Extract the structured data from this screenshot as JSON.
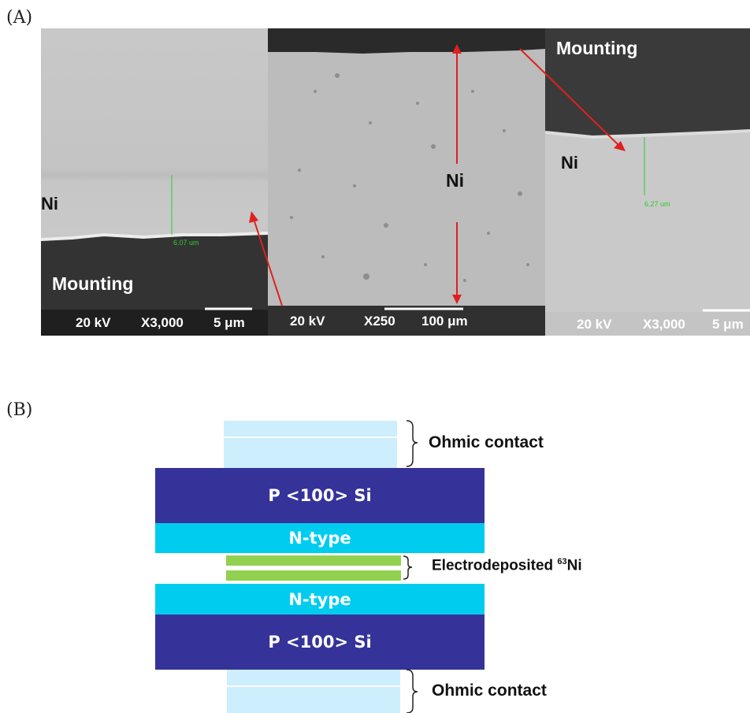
{
  "panel_a": {
    "label": "(A)",
    "left_image": {
      "ni_label": "Ni",
      "mounting_label": "Mounting",
      "measure": "6.07 um",
      "voltage": "20 kV",
      "mag": "X3,000",
      "scale": "5 μm"
    },
    "center_image": {
      "ni_label": "Ni",
      "voltage": "20 kV",
      "mag": "X250",
      "scale": "100 μm"
    },
    "right_image": {
      "ni_label": "Ni",
      "mounting_label": "Mounting",
      "measure": "6.27 um",
      "voltage": "20 kV",
      "mag": "X3,000",
      "scale": "5 μm"
    },
    "arrow_color": "#e02020"
  },
  "panel_b": {
    "label": "(B)",
    "layers": {
      "p_si_top": "P <100> Si",
      "n_type_top": "N-type",
      "n_type_bottom": "N-type",
      "p_si_bottom": "P <100> Si"
    },
    "annotations": {
      "ohmic_top": "Ohmic contact",
      "electro_prefix": "Electrodeposited ",
      "electro_sup": "63",
      "electro_suffix": "Ni",
      "ohmic_bottom": "Ohmic contact"
    },
    "colors": {
      "p_si": "#35339a",
      "n_type": "#00ccf0",
      "ohmic": "#cdeefc",
      "ni63": "#92d050"
    }
  }
}
